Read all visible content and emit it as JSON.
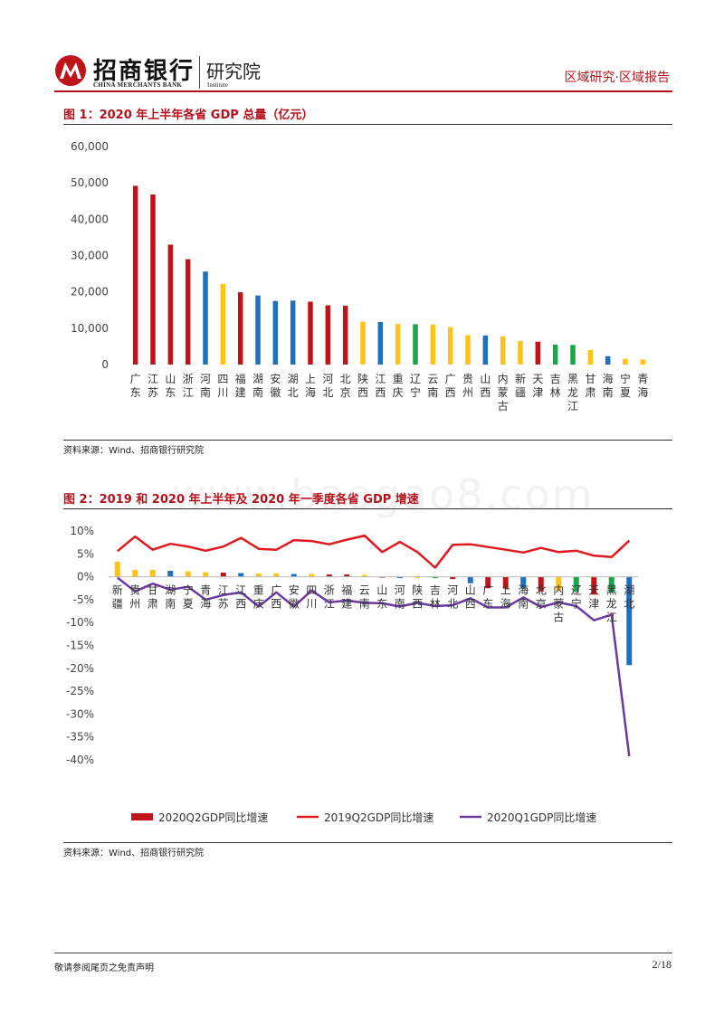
{
  "header": {
    "brand_cn": "招商银行",
    "brand_en": "CHINA MERCHANTS BANK",
    "institute_cn": "研究院",
    "institute_en": "Institute",
    "category": "区域研究·区域报告"
  },
  "colors": {
    "red": "#c0141b",
    "blue": "#1f6fba",
    "yellow": "#fcc419",
    "green": "#1aa548",
    "purple": "#6c3aa0",
    "line_red": "#e0191f",
    "brand": "#b5121b"
  },
  "figure1": {
    "title": "图 1：2020 年上半年各省 GDP 总量（亿元）",
    "source": "资料来源：Wind、招商银行研究院"
  },
  "figure2": {
    "title": "图 2：2019 和 2020 年上半年及 2020 年一季度各省 GDP 增速",
    "source": "资料来源：Wind、招商银行研究院"
  },
  "watermark": "www.baogao8.com",
  "footer": {
    "disclaimer": "敬请参阅尾页之免责声明",
    "page": "2/18"
  },
  "chart_data": [
    {
      "type": "bar",
      "title": "图 1：2020 年上半年各省 GDP 总量（亿元）",
      "xlabel": "",
      "ylabel": "",
      "ylim": [
        0,
        60000
      ],
      "yticks": [
        "60,000",
        "50,000",
        "40,000",
        "30,000",
        "20,000",
        "10,000",
        "0"
      ],
      "categories": [
        "广东",
        "江苏",
        "山东",
        "浙江",
        "河南",
        "四川",
        "福建",
        "湖南",
        "安徽",
        "湖北",
        "上海",
        "河北",
        "北京",
        "陕西",
        "江西",
        "重庆",
        "辽宁",
        "云南",
        "广西",
        "贵州",
        "山西",
        "内蒙古",
        "新疆",
        "天津",
        "吉林",
        "黑龙江",
        "甘肃",
        "海南",
        "宁夏",
        "青海"
      ],
      "values": [
        49200,
        46800,
        33000,
        29000,
        25600,
        22200,
        19900,
        19000,
        17500,
        17600,
        17300,
        16300,
        16200,
        11800,
        11700,
        11200,
        11100,
        11000,
        10300,
        8100,
        8000,
        7800,
        6500,
        6300,
        5500,
        5400,
        4000,
        2300,
        1600,
        1400
      ],
      "bar_colors": [
        "red",
        "red",
        "red",
        "red",
        "blue",
        "yellow",
        "red",
        "blue",
        "blue",
        "blue",
        "red",
        "red",
        "red",
        "yellow",
        "blue",
        "yellow",
        "green",
        "yellow",
        "yellow",
        "yellow",
        "blue",
        "yellow",
        "yellow",
        "red",
        "green",
        "green",
        "yellow",
        "blue",
        "yellow",
        "yellow"
      ]
    },
    {
      "type": "bar+line",
      "title": "图 2：2019 和 2020 年上半年及 2020 年一季度各省 GDP 增速",
      "ylim": [
        -40,
        10
      ],
      "yticks": [
        "10%",
        "5%",
        "0%",
        "-5%",
        "-10%",
        "-15%",
        "-20%",
        "-25%",
        "-30%",
        "-35%",
        "-40%"
      ],
      "categories": [
        "新疆",
        "贵州",
        "甘肃",
        "湖南",
        "宁夏",
        "青海",
        "江苏",
        "江西",
        "重庆",
        "广西",
        "安徽",
        "四川",
        "浙江",
        "福建",
        "云南",
        "山东",
        "河南",
        "陕西",
        "吉林",
        "河北",
        "山西",
        "广东",
        "上海",
        "海南",
        "北京",
        "内蒙古",
        "辽宁",
        "天津",
        "黑龙江",
        "湖北"
      ],
      "legend": [
        "2020Q2GDP同比增速",
        "2019Q2GDP同比增速",
        "2020Q1GDP同比增速"
      ],
      "series": [
        {
          "name": "2020Q2GDP同比增速",
          "type": "bar",
          "values": [
            3.3,
            1.5,
            1.5,
            1.3,
            1.2,
            1.0,
            0.9,
            0.8,
            0.7,
            0.7,
            0.6,
            0.6,
            0.5,
            0.5,
            0.4,
            -0.2,
            -0.3,
            -0.3,
            -0.3,
            -0.5,
            -1.4,
            -2.5,
            -2.6,
            -2.6,
            -3.2,
            -3.0,
            -3.3,
            -3.9,
            -3.5,
            -19.3
          ],
          "bar_colors": [
            "yellow",
            "yellow",
            "yellow",
            "blue",
            "yellow",
            "yellow",
            "red",
            "blue",
            "yellow",
            "yellow",
            "blue",
            "yellow",
            "red",
            "red",
            "yellow",
            "red",
            "blue",
            "yellow",
            "green",
            "red",
            "blue",
            "red",
            "red",
            "blue",
            "red",
            "yellow",
            "green",
            "red",
            "green",
            "blue"
          ]
        },
        {
          "name": "2019Q2GDP同比增速",
          "type": "line",
          "values": [
            5.6,
            8.8,
            5.9,
            7.2,
            6.6,
            5.7,
            6.6,
            8.5,
            6.1,
            5.9,
            8.0,
            7.8,
            7.1,
            8.1,
            9.0,
            5.4,
            7.6,
            5.4,
            2.0,
            7.0,
            7.1,
            6.5,
            5.9,
            5.3,
            6.3,
            5.4,
            5.7,
            4.6,
            4.3,
            7.9
          ]
        },
        {
          "name": "2020Q1GDP同比增速",
          "type": "line",
          "values": [
            -0.2,
            -3.2,
            -1.5,
            -2.8,
            -2.2,
            -5.0,
            -4.0,
            -3.4,
            -6.5,
            -3.4,
            -6.5,
            -3.0,
            -5.6,
            -5.2,
            -5.7,
            -5.8,
            -6.5,
            -5.7,
            -6.4,
            -6.2,
            -4.7,
            -6.7,
            -6.7,
            -4.5,
            -6.6,
            -5.6,
            -6.4,
            -9.5,
            -8.3,
            -39.2
          ]
        }
      ]
    }
  ]
}
